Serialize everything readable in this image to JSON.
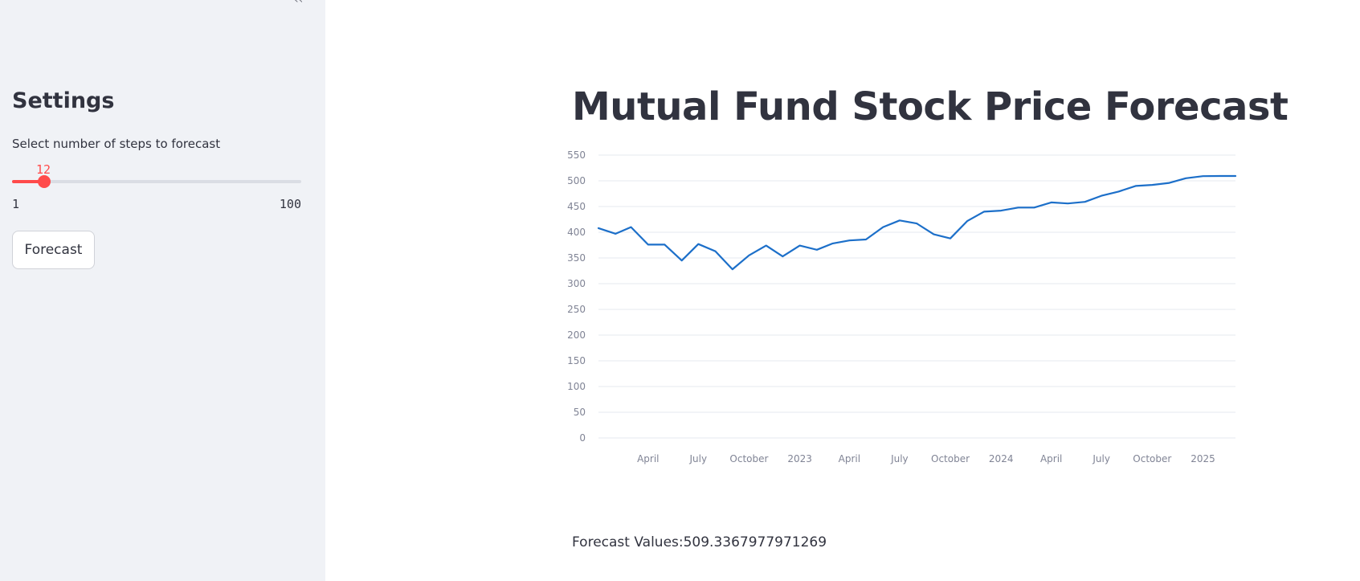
{
  "sidebar": {
    "heading": "Settings",
    "slider": {
      "label": "Select number of steps to forecast",
      "value": "12",
      "min": "1",
      "max": "100",
      "value_num": 12,
      "min_num": 1,
      "max_num": 100
    },
    "forecast_button": "Forecast"
  },
  "main": {
    "title": "Mutual Fund Stock Price Forecast",
    "forecast_label": "Forecast Values:",
    "forecast_value": "509.3367977971269"
  },
  "colors": {
    "accent": "#ff4b4b",
    "line": "#1c6fc9",
    "grid": "#e6e9ef",
    "sidebar_bg": "#f0f2f6"
  },
  "chart_data": {
    "type": "line",
    "grid": true,
    "ylim": [
      0,
      550
    ],
    "yticks": [
      0,
      50,
      100,
      150,
      200,
      250,
      300,
      350,
      400,
      450,
      500,
      550
    ],
    "xlim": [
      "2022-01-01",
      "2025-03-01"
    ],
    "xticks": [
      {
        "date": "2022-04-01",
        "label": "April"
      },
      {
        "date": "2022-07-01",
        "label": "July"
      },
      {
        "date": "2022-10-01",
        "label": "October"
      },
      {
        "date": "2023-01-01",
        "label": "2023"
      },
      {
        "date": "2023-04-01",
        "label": "April"
      },
      {
        "date": "2023-07-01",
        "label": "July"
      },
      {
        "date": "2023-10-01",
        "label": "October"
      },
      {
        "date": "2024-01-01",
        "label": "2024"
      },
      {
        "date": "2024-04-01",
        "label": "April"
      },
      {
        "date": "2024-07-01",
        "label": "July"
      },
      {
        "date": "2024-10-01",
        "label": "October"
      },
      {
        "date": "2025-01-01",
        "label": "2025"
      }
    ],
    "series": [
      {
        "x": [
          "2022-01-01",
          "2022-02-01",
          "2022-03-01",
          "2022-04-01",
          "2022-05-01",
          "2022-06-01",
          "2022-07-01",
          "2022-08-01",
          "2022-09-01",
          "2022-10-01",
          "2022-11-01",
          "2022-12-01",
          "2023-01-01",
          "2023-02-01",
          "2023-03-01",
          "2023-04-01",
          "2023-05-01",
          "2023-06-01",
          "2023-07-01",
          "2023-08-01",
          "2023-09-01",
          "2023-10-01",
          "2023-11-01",
          "2023-12-01",
          "2024-01-01",
          "2024-02-01",
          "2024-03-01",
          "2024-04-01",
          "2024-05-01",
          "2024-06-01",
          "2024-07-01",
          "2024-08-01",
          "2024-09-01",
          "2024-10-01",
          "2024-11-01",
          "2024-12-01",
          "2025-01-01",
          "2025-02-01",
          "2025-03-01"
        ],
        "y": [
          408,
          397,
          410,
          376,
          376,
          345,
          377,
          363,
          328,
          355,
          374,
          353,
          374,
          366,
          378,
          384,
          386,
          410,
          423,
          417,
          396,
          388,
          422,
          440,
          442,
          448,
          448,
          458,
          456,
          459,
          471,
          479,
          490,
          492,
          496,
          505,
          509,
          509.3,
          509.3
        ]
      }
    ]
  }
}
